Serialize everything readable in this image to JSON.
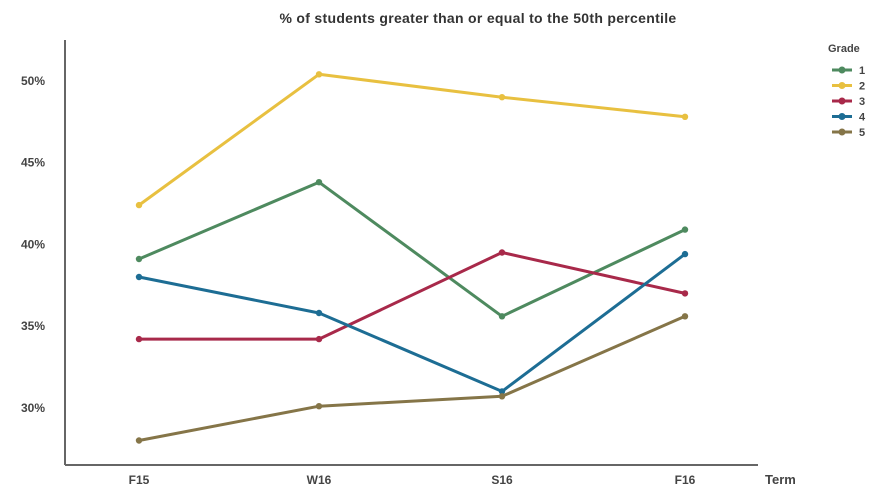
{
  "chart_data": {
    "type": "line",
    "title": "% of students greater than or equal to the 50th percentile",
    "xlabel": "Term",
    "ylabel": "",
    "categories": [
      "F15",
      "W16",
      "S16",
      "F16"
    ],
    "ylim": [
      26.5,
      52.5
    ],
    "yticks": [
      30,
      35,
      40,
      45,
      50
    ],
    "ytick_labels": [
      "30%",
      "35%",
      "40%",
      "45%",
      "50%"
    ],
    "grid": false,
    "legend": {
      "title": "Grade",
      "placement": "top-right"
    },
    "series": [
      {
        "name": "1",
        "color": "#4e8a5f",
        "values": [
          39.1,
          43.8,
          35.6,
          40.9
        ]
      },
      {
        "name": "2",
        "color": "#e8c040",
        "values": [
          42.4,
          50.4,
          49.0,
          47.8
        ]
      },
      {
        "name": "3",
        "color": "#a8294a",
        "values": [
          34.2,
          34.2,
          39.5,
          37.0
        ]
      },
      {
        "name": "4",
        "color": "#1d6d94",
        "values": [
          38.0,
          35.8,
          31.0,
          39.4
        ]
      },
      {
        "name": "5",
        "color": "#857548",
        "values": [
          28.0,
          30.1,
          30.7,
          35.6
        ]
      }
    ]
  }
}
